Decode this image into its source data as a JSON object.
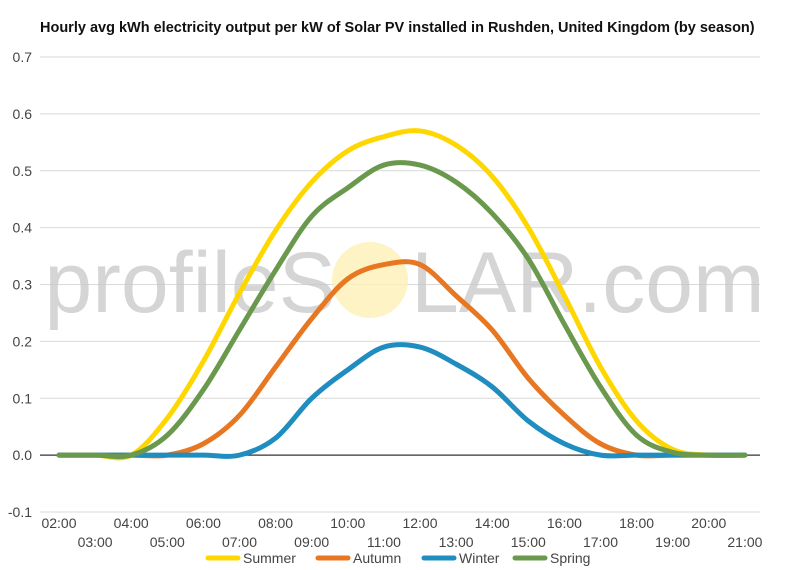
{
  "chart_data": {
    "type": "line",
    "title": "Hourly avg kWh electricity output per kW of Solar PV installed in Rushden, United Kingdom (by season)",
    "watermark": {
      "left": "profileS",
      "right": "LAR.com"
    },
    "ylim": [
      -0.1,
      0.7
    ],
    "yticks": [
      -0.1,
      0.0,
      0.1,
      0.2,
      0.3,
      0.4,
      0.5,
      0.6,
      0.7
    ],
    "ytick_labels": [
      "-0.1",
      "0.0",
      "0.1",
      "0.2",
      "0.3",
      "0.4",
      "0.5",
      "0.6",
      "0.7"
    ],
    "x": [
      2,
      3,
      4,
      5,
      6,
      7,
      8,
      9,
      10,
      11,
      12,
      13,
      14,
      15,
      16,
      17,
      18,
      19,
      20,
      21
    ],
    "x_labels": [
      "02:00",
      "03:00",
      "04:00",
      "05:00",
      "06:00",
      "07:00",
      "08:00",
      "09:00",
      "10:00",
      "11:00",
      "12:00",
      "13:00",
      "14:00",
      "15:00",
      "16:00",
      "17:00",
      "18:00",
      "19:00",
      "20:00",
      "21:00"
    ],
    "grid": true,
    "legend_position": "bottom",
    "series": [
      {
        "name": "Summer",
        "color": "#FFD700",
        "values": [
          0.0,
          0.0,
          0.0,
          0.065,
          0.165,
          0.285,
          0.395,
          0.48,
          0.535,
          0.56,
          0.57,
          0.545,
          0.49,
          0.4,
          0.28,
          0.155,
          0.06,
          0.01,
          0.0,
          0.0
        ]
      },
      {
        "name": "Autumn",
        "color": "#E87722",
        "values": [
          0.0,
          0.0,
          0.0,
          0.0,
          0.02,
          0.07,
          0.155,
          0.24,
          0.31,
          0.335,
          0.335,
          0.28,
          0.22,
          0.135,
          0.07,
          0.02,
          0.0,
          0.0,
          0.0,
          0.0
        ]
      },
      {
        "name": "Winter",
        "color": "#1F8DC0",
        "values": [
          0.0,
          0.0,
          0.0,
          0.0,
          0.0,
          0.0,
          0.03,
          0.1,
          0.15,
          0.19,
          0.19,
          0.16,
          0.12,
          0.06,
          0.02,
          0.0,
          0.0,
          0.0,
          0.0,
          0.0
        ]
      },
      {
        "name": "Spring",
        "color": "#6A994E",
        "values": [
          0.0,
          0.0,
          0.0,
          0.035,
          0.115,
          0.22,
          0.325,
          0.42,
          0.47,
          0.51,
          0.51,
          0.48,
          0.425,
          0.345,
          0.23,
          0.12,
          0.035,
          0.005,
          0.0,
          0.0
        ]
      }
    ]
  }
}
